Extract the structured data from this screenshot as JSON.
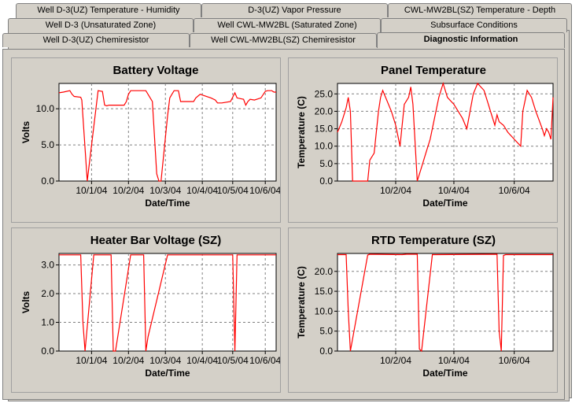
{
  "tabs": {
    "row1": [
      "Well D-3(UZ) Temperature - Humidity",
      "D-3(UZ) Vapor Pressure",
      "CWL-MW2BL(SZ) Temperature - Depth"
    ],
    "row2": [
      "Well D-3 (Unsaturated Zone)",
      "Well CWL-MW2BL (Saturated Zone)",
      "Subsurface Conditions"
    ],
    "row3": [
      "Well D-3(UZ) Chemiresistor",
      "Well CWL-MW2BL(SZ) Chemiresistor",
      "Diagnostic Information"
    ],
    "active": "Diagnostic Information"
  },
  "colors": {
    "line": "#ff0000",
    "grid": "#808080",
    "panel": "#d4d0c8"
  },
  "chart_data": [
    {
      "type": "line",
      "title": "Battery Voltage",
      "xlabel": "Date/Time",
      "ylabel": "Volts",
      "xlim": [
        0,
        100
      ],
      "ylim": [
        0,
        13.5
      ],
      "yticks": [
        "0.0",
        "5.0",
        "10.0"
      ],
      "ytick_values": [
        0,
        5,
        10
      ],
      "xticks": [
        "10/1/04",
        "10/2/04",
        "10/3/04",
        "10/4/04",
        "10/5/04",
        "10/6/04"
      ],
      "xtick_values": [
        15,
        32,
        49,
        66,
        80,
        95
      ],
      "series": [
        {
          "x": [
            0,
            2,
            5,
            6,
            7,
            10,
            10.5,
            13,
            18,
            20,
            21,
            22,
            23,
            30,
            31,
            32,
            33,
            35,
            40,
            43,
            45,
            46,
            47,
            50,
            51,
            52,
            53,
            55,
            56,
            60,
            62,
            63,
            65,
            70,
            72,
            73,
            75,
            79,
            81,
            82,
            85,
            86,
            87,
            88,
            90,
            93,
            95,
            96,
            98,
            99,
            100
          ],
          "y": [
            12.2,
            12.3,
            12.5,
            12.0,
            11.7,
            11.6,
            11.2,
            0.0,
            12.5,
            12.4,
            10.5,
            10.4,
            10.5,
            10.5,
            11.0,
            12.0,
            12.5,
            12.5,
            12.5,
            11.0,
            1.0,
            0.0,
            0.0,
            9.0,
            11.5,
            12.0,
            12.5,
            12.5,
            11.0,
            11.0,
            11.0,
            11.5,
            12.0,
            11.5,
            11.2,
            10.8,
            10.8,
            11.0,
            12.2,
            11.5,
            11.3,
            10.5,
            11.0,
            11.3,
            11.2,
            11.5,
            12.4,
            12.5,
            12.5,
            12.3,
            12.3
          ]
        }
      ]
    },
    {
      "type": "line",
      "title": "Panel Temperature",
      "xlabel": "Date/Time",
      "ylabel": "Temperature (C)",
      "xlim": [
        0,
        100
      ],
      "ylim": [
        0,
        28
      ],
      "yticks": [
        "0.0",
        "5.0",
        "10.0",
        "15.0",
        "20.0",
        "25.0"
      ],
      "ytick_values": [
        0,
        5,
        10,
        15,
        20,
        25
      ],
      "xticks": [
        "10/2/04",
        "10/4/04",
        "10/6/04"
      ],
      "xtick_values": [
        27,
        54,
        82
      ],
      "series": [
        {
          "x": [
            0,
            2,
            4,
            5,
            6,
            7,
            14,
            15,
            17,
            19,
            20,
            21,
            25,
            27,
            29,
            31,
            33,
            34,
            35,
            37,
            39,
            41,
            43,
            45,
            47,
            49,
            51,
            54,
            58,
            60,
            63,
            65,
            68,
            70,
            71,
            72,
            73,
            74,
            75,
            77,
            79,
            82,
            85,
            86,
            87,
            88,
            90,
            92,
            95,
            96,
            97,
            98,
            99,
            100
          ],
          "y": [
            14,
            17,
            21,
            24,
            20,
            0,
            0,
            6,
            8,
            20,
            24,
            26,
            20,
            16,
            10,
            22,
            24,
            27,
            22,
            0,
            4,
            8,
            12,
            18,
            24,
            28,
            24,
            22,
            18,
            15,
            25,
            28,
            26,
            22,
            20,
            18,
            16,
            19,
            17,
            16,
            14,
            12,
            10,
            20,
            23,
            26,
            24,
            20,
            15,
            13,
            15,
            14,
            12,
            24
          ]
        }
      ]
    },
    {
      "type": "line",
      "title": "Heater Bar Voltage (SZ)",
      "xlabel": "Date/Time",
      "ylabel": "Volts",
      "xlim": [
        0,
        100
      ],
      "ylim": [
        0,
        3.4
      ],
      "yticks": [
        "0.0",
        "1.0",
        "2.0",
        "3.0"
      ],
      "ytick_values": [
        0,
        1,
        2,
        3
      ],
      "xticks": [
        "10/1/04",
        "10/2/04",
        "10/3/04",
        "10/4/04",
        "10/5/04",
        "10/6/04"
      ],
      "xtick_values": [
        15,
        32,
        49,
        66,
        80,
        95
      ],
      "series": [
        {
          "x": [
            0,
            10,
            11,
            12,
            16,
            17,
            24,
            25,
            26,
            33,
            34,
            39,
            40,
            41,
            50,
            51,
            80,
            81,
            82,
            100
          ],
          "y": [
            3.35,
            3.35,
            1.0,
            0.0,
            3.35,
            3.35,
            3.35,
            0.0,
            0.0,
            3.35,
            3.35,
            3.35,
            0.0,
            0.5,
            3.35,
            3.35,
            3.35,
            0.0,
            3.35,
            3.35
          ]
        }
      ]
    },
    {
      "type": "line",
      "title": "RTD Temperature (SZ)",
      "xlabel": "Date/Time",
      "ylabel": "Temperature (C)",
      "xlim": [
        0,
        100
      ],
      "ylim": [
        0,
        24.5
      ],
      "yticks": [
        "0.0",
        "5.0",
        "10.0",
        "15.0",
        "20.0"
      ],
      "ytick_values": [
        0,
        5,
        10,
        15,
        20
      ],
      "xticks": [
        "10/2/04",
        "10/4/04",
        "10/6/04"
      ],
      "xtick_values": [
        27,
        54,
        82
      ],
      "series": [
        {
          "x": [
            0,
            4,
            5,
            6,
            14,
            15,
            30,
            32,
            37,
            38,
            39,
            44,
            46,
            74,
            75,
            76,
            77,
            78,
            100
          ],
          "y": [
            24.2,
            24.2,
            10,
            0,
            24.1,
            24.3,
            24.2,
            24.3,
            24.3,
            0.5,
            0,
            24.2,
            24.2,
            24.3,
            5,
            0,
            24.0,
            24.2,
            24.2
          ]
        }
      ]
    }
  ]
}
